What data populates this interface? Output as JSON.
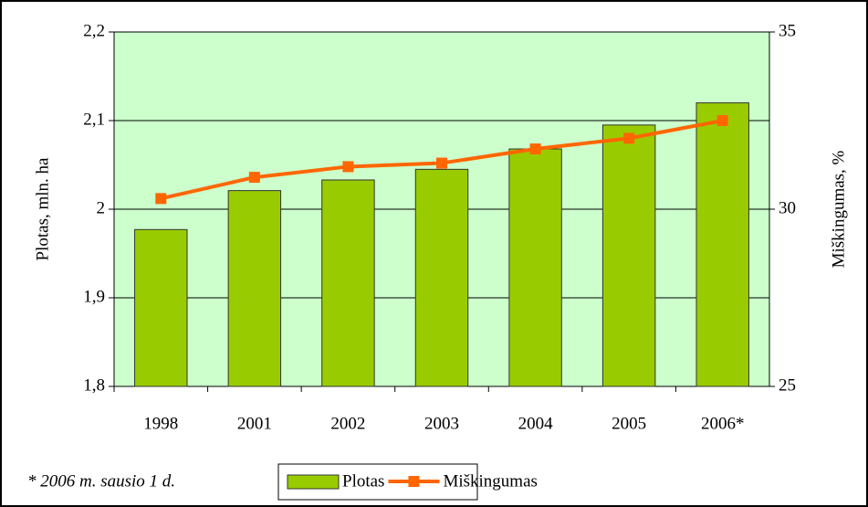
{
  "chart_data": {
    "type": "bar",
    "categories": [
      "1998",
      "2001",
      "2002",
      "2003",
      "2004",
      "2005",
      "2006*"
    ],
    "series": [
      {
        "name": "Plotas",
        "type": "bar",
        "color": "#99cc00",
        "values": [
          1.977,
          2.021,
          2.033,
          2.045,
          2.068,
          2.095,
          2.12
        ]
      },
      {
        "name": "Miškingumas",
        "type": "line",
        "color": "#ff6600",
        "axis": "y2",
        "values": [
          30.3,
          30.9,
          31.2,
          31.3,
          31.7,
          32.0,
          32.5
        ]
      }
    ],
    "ylabel": "Plotas, mln. ha",
    "y2label": "Miškingumas, %",
    "ylim": [
      1.8,
      2.2
    ],
    "yticks": [
      {
        "value": 1.8,
        "label": "1,8"
      },
      {
        "value": 1.9,
        "label": "1,9"
      },
      2,
      {
        "value": 2.1,
        "label": "2,1"
      },
      {
        "value": 2.2,
        "label": "2,2"
      }
    ],
    "y2lim": [
      25,
      35
    ],
    "y2ticks": [
      25,
      30,
      35
    ],
    "annotation": "* 2006 m. sausio 1 d.",
    "grid": true,
    "plot_background": "#ccffcc",
    "legend": "bottom"
  }
}
